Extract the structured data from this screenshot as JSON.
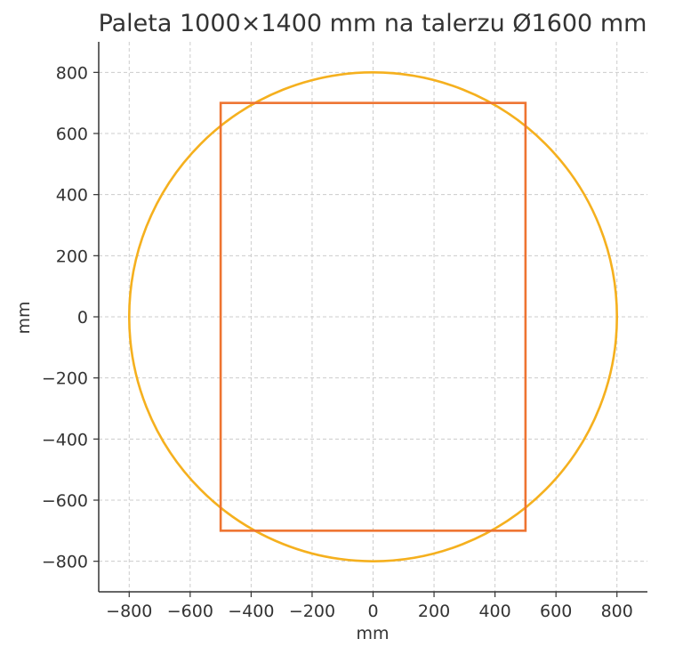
{
  "chart_data": {
    "type": "scatter",
    "title": "Paleta 1000×1400 mm na talerzu Ø1600 mm",
    "xlabel": "mm",
    "ylabel": "mm",
    "xlim": [
      -900,
      900
    ],
    "ylim": [
      -900,
      900
    ],
    "grid": true,
    "x_ticks": [
      -800,
      -600,
      -400,
      -200,
      0,
      200,
      400,
      600,
      800
    ],
    "y_ticks": [
      -800,
      -600,
      -400,
      -200,
      0,
      200,
      400,
      600,
      800
    ],
    "x_tick_labels": [
      "−800",
      "−600",
      "−400",
      "−200",
      "0",
      "200",
      "400",
      "600",
      "800"
    ],
    "y_tick_labels": [
      "−800",
      "−600",
      "−400",
      "−200",
      "0",
      "200",
      "400",
      "600",
      "800"
    ],
    "shapes": [
      {
        "kind": "circle",
        "center": [
          0,
          0
        ],
        "radius": 800,
        "color": "#f5b01e"
      },
      {
        "kind": "rectangle",
        "x_range": [
          -500,
          500
        ],
        "y_range": [
          -700,
          700
        ],
        "color": "#ee7431"
      }
    ]
  }
}
